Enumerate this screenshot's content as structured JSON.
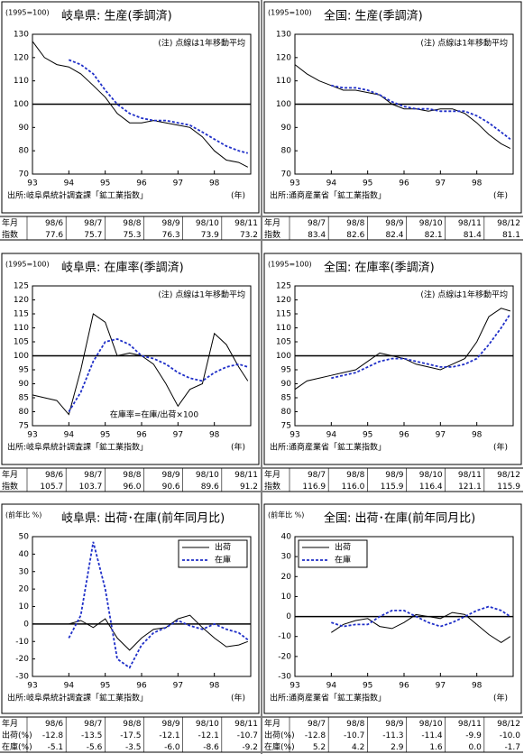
{
  "chart_data": [
    {
      "type": "line",
      "title": "岐阜県: 生産(季調済)",
      "unit_label": "(1995=100)",
      "annotations": [
        "(注) 点線は1年移動平均"
      ],
      "source": "出所:岐阜県統計調査課「鉱工業指数」",
      "x_unit": "(年)",
      "x": [
        1993,
        1993.33,
        1993.67,
        1994,
        1994.33,
        1994.67,
        1995,
        1995.33,
        1995.67,
        1996,
        1996.33,
        1996.67,
        1997,
        1997.33,
        1997.67,
        1998,
        1998.33,
        1998.67,
        1998.92
      ],
      "series": [
        {
          "color": "#000000",
          "style": "solid",
          "values": [
            127,
            120,
            117,
            116,
            113,
            108,
            103,
            96,
            92,
            92,
            93,
            92,
            91,
            90,
            86,
            80,
            76,
            75,
            73
          ]
        },
        {
          "color": "#1f2fc8",
          "style": "dotted",
          "values": [
            null,
            null,
            null,
            119,
            117,
            113,
            106,
            100,
            96,
            94,
            93,
            93,
            92,
            91,
            88,
            85,
            82,
            80,
            79
          ]
        }
      ],
      "xlim": [
        1993,
        1999
      ],
      "xticks": [
        {
          "value": 1993,
          "label": "93"
        },
        {
          "value": 1994,
          "label": "94"
        },
        {
          "value": 1995,
          "label": "95"
        },
        {
          "value": 1996,
          "label": "96"
        },
        {
          "value": 1997,
          "label": "97"
        },
        {
          "value": 1998,
          "label": "98"
        }
      ],
      "ylim": [
        70,
        130
      ],
      "yticks": [
        70,
        80,
        90,
        100,
        110,
        120,
        130
      ],
      "ref_line": 100
    },
    {
      "type": "line",
      "title": "全国: 生産(季調済)",
      "unit_label": "(1995=100)",
      "annotations": [
        "(注) 点線は1年移動平均"
      ],
      "source": "出所:通商産業省「鉱工業指数」",
      "x_unit": "(年)",
      "x": [
        1993,
        1993.33,
        1993.67,
        1994,
        1994.33,
        1994.67,
        1995,
        1995.33,
        1995.67,
        1996,
        1996.33,
        1996.67,
        1997,
        1997.33,
        1997.67,
        1998,
        1998.33,
        1998.67,
        1998.92
      ],
      "series": [
        {
          "color": "#000000",
          "style": "solid",
          "values": [
            117,
            113,
            110,
            108,
            106,
            106,
            105,
            104,
            100,
            98,
            98,
            97,
            98,
            98,
            96,
            92,
            87,
            83,
            81
          ]
        },
        {
          "color": "#1f2fc8",
          "style": "dotted",
          "values": [
            null,
            null,
            null,
            108,
            107,
            107,
            106,
            104,
            101,
            99,
            98,
            98,
            97,
            97,
            97,
            95,
            92,
            88,
            85
          ]
        }
      ],
      "xlim": [
        1993,
        1999
      ],
      "xticks": [
        {
          "value": 1993,
          "label": "93"
        },
        {
          "value": 1994,
          "label": "94"
        },
        {
          "value": 1995,
          "label": "95"
        },
        {
          "value": 1996,
          "label": "96"
        },
        {
          "value": 1997,
          "label": "97"
        },
        {
          "value": 1998,
          "label": "98"
        }
      ],
      "ylim": [
        70,
        130
      ],
      "yticks": [
        70,
        80,
        90,
        100,
        110,
        120,
        130
      ],
      "ref_line": 100
    },
    {
      "type": "line",
      "title": "岐阜県: 在庫率(季調済)",
      "unit_label": "(1995=100)",
      "annotations": [
        "(注) 点線は1年移動平均",
        "在庫率=在庫/出荷×100"
      ],
      "source": "出所:岐阜県統計調査課「鉱工業指数」",
      "x_unit": "(年)",
      "x": [
        1993,
        1993.33,
        1993.67,
        1994,
        1994.33,
        1994.67,
        1995,
        1995.33,
        1995.67,
        1996,
        1996.33,
        1996.67,
        1997,
        1997.33,
        1997.67,
        1998,
        1998.33,
        1998.67,
        1998.92
      ],
      "series": [
        {
          "color": "#000000",
          "style": "solid",
          "values": [
            86,
            85,
            84,
            79,
            95,
            115,
            112,
            100,
            101,
            100,
            97,
            90,
            82,
            88,
            90,
            108,
            104,
            96,
            91
          ]
        },
        {
          "color": "#1f2fc8",
          "style": "dotted",
          "values": [
            null,
            null,
            null,
            80,
            87,
            98,
            105,
            106,
            104,
            100,
            99,
            97,
            94,
            92,
            91,
            94,
            96,
            97,
            96
          ]
        }
      ],
      "xlim": [
        1993,
        1999
      ],
      "xticks": [
        {
          "value": 1993,
          "label": "93"
        },
        {
          "value": 1994,
          "label": "94"
        },
        {
          "value": 1995,
          "label": "95"
        },
        {
          "value": 1996,
          "label": "96"
        },
        {
          "value": 1997,
          "label": "97"
        },
        {
          "value": 1998,
          "label": "98"
        }
      ],
      "ylim": [
        75,
        125
      ],
      "yticks": [
        75,
        80,
        85,
        90,
        95,
        100,
        105,
        110,
        115,
        120,
        125
      ],
      "ref_line": 100
    },
    {
      "type": "line",
      "title": "全国: 在庫率(季調済)",
      "unit_label": "(1995=100)",
      "annotations": [
        "(注) 点線は1年移動平均"
      ],
      "source": "出所:通商産業省「鉱工業指数」",
      "x_unit": "(年)",
      "x": [
        1993,
        1993.33,
        1993.67,
        1994,
        1994.33,
        1994.67,
        1995,
        1995.33,
        1995.67,
        1996,
        1996.33,
        1996.67,
        1997,
        1997.33,
        1997.67,
        1998,
        1998.33,
        1998.67,
        1998.92
      ],
      "series": [
        {
          "color": "#000000",
          "style": "solid",
          "values": [
            88,
            91,
            92,
            93,
            94,
            95,
            98,
            101,
            100,
            99,
            97,
            96,
            95,
            97,
            99,
            105,
            114,
            117,
            116
          ]
        },
        {
          "color": "#1f2fc8",
          "style": "dotted",
          "values": [
            null,
            null,
            null,
            92,
            93,
            94,
            96,
            98,
            99,
            99,
            98,
            97,
            96,
            96,
            97,
            99,
            104,
            110,
            115
          ]
        }
      ],
      "xlim": [
        1993,
        1999
      ],
      "xticks": [
        {
          "value": 1993,
          "label": "93"
        },
        {
          "value": 1994,
          "label": "94"
        },
        {
          "value": 1995,
          "label": "95"
        },
        {
          "value": 1996,
          "label": "96"
        },
        {
          "value": 1997,
          "label": "97"
        },
        {
          "value": 1998,
          "label": "98"
        }
      ],
      "ylim": [
        75,
        125
      ],
      "yticks": [
        75,
        80,
        85,
        90,
        95,
        100,
        105,
        110,
        115,
        120,
        125
      ],
      "ref_line": 100
    },
    {
      "type": "line",
      "title": "岐阜県: 出荷･在庫(前年同月比)",
      "unit_label": "(前年比 %)",
      "annotations": [],
      "source": "出所:岐阜県統計調査課「鉱工業指数」",
      "x_unit": "(年)",
      "legend": "upper right",
      "x": [
        1993,
        1993.33,
        1993.67,
        1994,
        1994.33,
        1994.67,
        1995,
        1995.33,
        1995.67,
        1996,
        1996.33,
        1996.67,
        1997,
        1997.33,
        1997.67,
        1998,
        1998.33,
        1998.67,
        1998.92
      ],
      "series": [
        {
          "name": "出荷",
          "color": "#000000",
          "style": "solid",
          "values": [
            null,
            null,
            null,
            0,
            2,
            -2,
            3,
            -8,
            -15,
            -8,
            -3,
            -2,
            3,
            5,
            -2,
            -8,
            -13,
            -12,
            -10
          ]
        },
        {
          "name": "在庫",
          "color": "#1f2fc8",
          "style": "dotted",
          "values": [
            null,
            null,
            null,
            -8,
            5,
            47,
            20,
            -20,
            -25,
            -12,
            -5,
            -2,
            2,
            -1,
            -3,
            0,
            -3,
            -5,
            -9
          ]
        }
      ],
      "xlim": [
        1993,
        1999
      ],
      "xticks": [
        {
          "value": 1993,
          "label": "93"
        },
        {
          "value": 1994,
          "label": "94"
        },
        {
          "value": 1995,
          "label": "95"
        },
        {
          "value": 1996,
          "label": "96"
        },
        {
          "value": 1997,
          "label": "97"
        },
        {
          "value": 1998,
          "label": "98"
        }
      ],
      "ylim": [
        -30,
        50
      ],
      "yticks": [
        -30,
        -20,
        -10,
        0,
        10,
        20,
        30,
        40,
        50
      ],
      "ref_line": 0
    },
    {
      "type": "line",
      "title": "全国: 出荷･在庫(前年同月比)",
      "unit_label": "(前年比 %)",
      "annotations": [],
      "source": "出所:通商産業省「鉱工業指数」",
      "x_unit": "(年)",
      "legend": "upper left",
      "x": [
        1993,
        1993.33,
        1993.67,
        1994,
        1994.33,
        1994.67,
        1995,
        1995.33,
        1995.67,
        1996,
        1996.33,
        1996.67,
        1997,
        1997.33,
        1997.67,
        1998,
        1998.33,
        1998.67,
        1998.92
      ],
      "series": [
        {
          "name": "出荷",
          "color": "#000000",
          "style": "solid",
          "values": [
            null,
            null,
            null,
            -8,
            -4,
            -2,
            -1,
            -5,
            -6,
            -3,
            1,
            0,
            -1,
            2,
            1,
            -4,
            -9,
            -13,
            -10
          ]
        },
        {
          "name": "在庫",
          "color": "#1f2fc8",
          "style": "dotted",
          "values": [
            null,
            null,
            null,
            -3,
            -5,
            -4,
            -4,
            0,
            3,
            3,
            0,
            -3,
            -5,
            -3,
            0,
            3,
            5,
            3,
            0
          ]
        }
      ],
      "xlim": [
        1993,
        1999
      ],
      "xticks": [
        {
          "value": 1993,
          "label": "93"
        },
        {
          "value": 1994,
          "label": "94"
        },
        {
          "value": 1995,
          "label": "95"
        },
        {
          "value": 1996,
          "label": "96"
        },
        {
          "value": 1997,
          "label": "97"
        },
        {
          "value": 1998,
          "label": "98"
        }
      ],
      "ylim": [
        -30,
        40
      ],
      "yticks": [
        -30,
        -20,
        -10,
        0,
        10,
        20,
        30,
        40
      ],
      "ref_line": 0
    }
  ],
  "tables": [
    {
      "header": [
        "年月",
        "98/6",
        "98/7",
        "98/8",
        "98/9",
        "98/10",
        "98/11"
      ],
      "rows": [
        [
          "指数",
          "77.6",
          "75.7",
          "75.3",
          "76.3",
          "73.9",
          "73.2"
        ]
      ]
    },
    {
      "header": [
        "年月",
        "98/7",
        "98/8",
        "98/9",
        "98/10",
        "98/11",
        "98/12"
      ],
      "rows": [
        [
          "指数",
          "83.4",
          "82.6",
          "82.4",
          "82.1",
          "81.4",
          "81.1"
        ]
      ]
    },
    {
      "header": [
        "年月",
        "98/6",
        "98/7",
        "98/8",
        "98/9",
        "98/10",
        "98/11"
      ],
      "rows": [
        [
          "指数",
          "105.7",
          "103.7",
          "96.0",
          "90.6",
          "89.6",
          "91.2"
        ]
      ]
    },
    {
      "header": [
        "年月",
        "98/7",
        "98/8",
        "98/9",
        "98/10",
        "98/11",
        "98/12"
      ],
      "rows": [
        [
          "指数",
          "116.9",
          "116.0",
          "115.9",
          "116.4",
          "121.1",
          "115.9"
        ]
      ]
    },
    {
      "header": [
        "年月",
        "98/6",
        "98/7",
        "98/8",
        "98/9",
        "98/10",
        "98/11"
      ],
      "rows": [
        [
          "出荷(%)",
          "-12.8",
          "-13.5",
          "-17.5",
          "-12.1",
          "-12.1",
          "-10.7"
        ],
        [
          "在庫(%)",
          "-5.1",
          "-5.6",
          "-3.5",
          "-6.0",
          "-8.6",
          "-9.2"
        ]
      ]
    },
    {
      "header": [
        "年月",
        "98/7",
        "98/8",
        "98/9",
        "98/10",
        "98/11",
        "98/12"
      ],
      "rows": [
        [
          "出荷(%)",
          "-12.8",
          "-10.7",
          "-11.3",
          "-11.4",
          "-9.9",
          "-10.0"
        ],
        [
          "在庫(%)",
          "5.2",
          "4.2",
          "2.9",
          "1.6",
          "0.0",
          "-1.7"
        ]
      ]
    }
  ]
}
